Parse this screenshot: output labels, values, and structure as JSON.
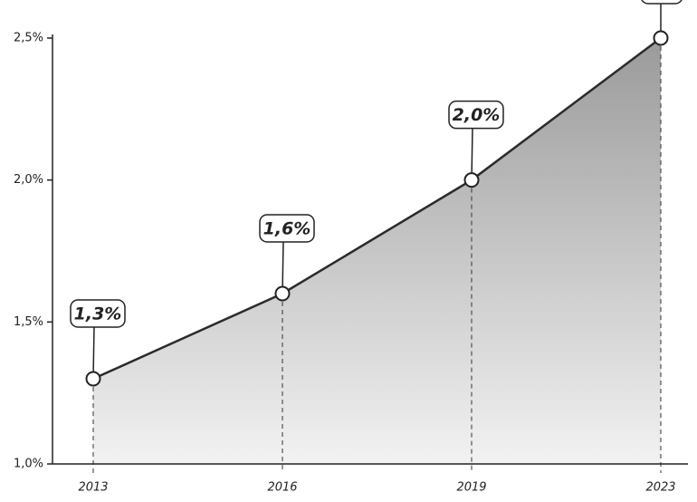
{
  "chart_data": {
    "type": "area",
    "categories": [
      "2013",
      "2016",
      "2019",
      "2023"
    ],
    "values": [
      1.3,
      1.6,
      2.0,
      2.5
    ],
    "value_labels": [
      "1,3%",
      "1,6%",
      "2,0%",
      null
    ],
    "color": "#2b2b2b",
    "ylim": [
      1.0,
      2.5
    ],
    "yticks": [
      {
        "value": 1.0,
        "label": "1,0%"
      },
      {
        "value": 1.5,
        "label": "1,5%"
      },
      {
        "value": 2.0,
        "label": "2,0%"
      },
      {
        "value": 2.5,
        "label": "2,5%"
      }
    ]
  }
}
